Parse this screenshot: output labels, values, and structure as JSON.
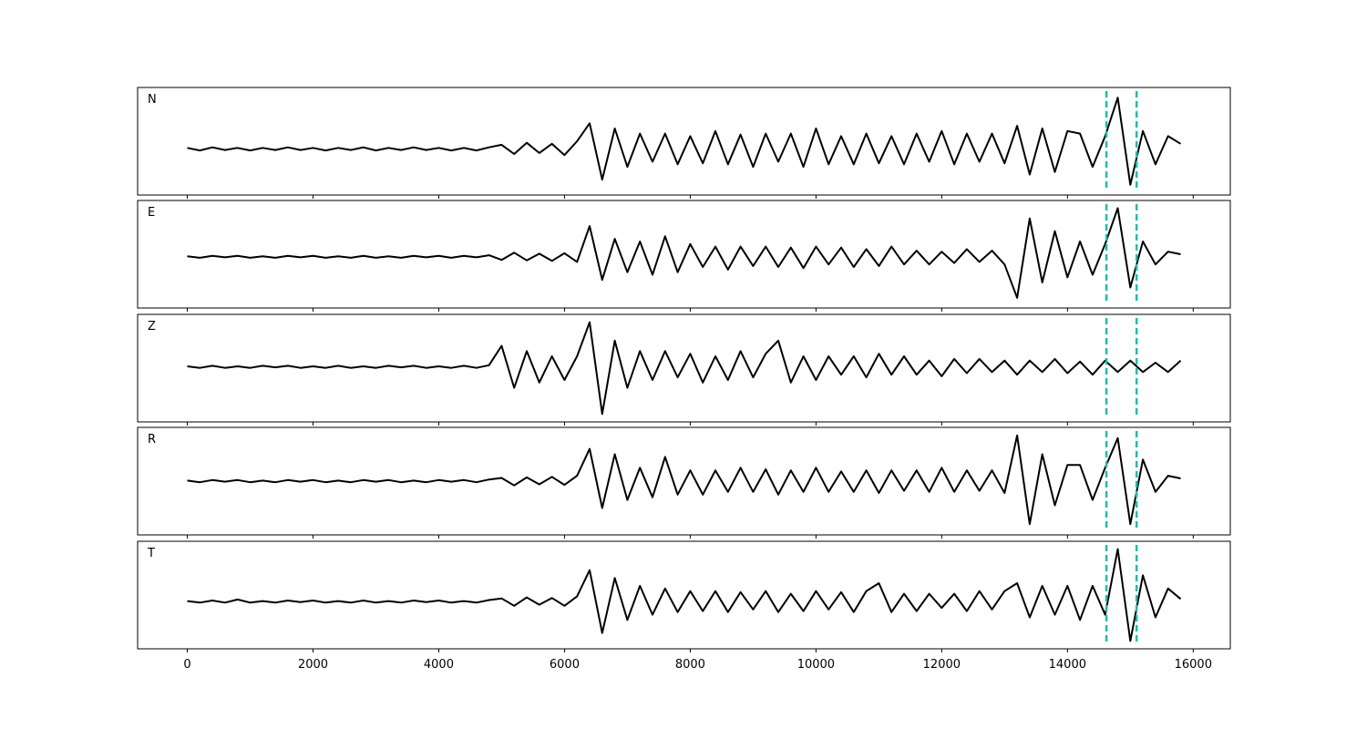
{
  "chart_data": {
    "type": "line",
    "x": [
      0,
      200,
      400,
      600,
      800,
      1000,
      1200,
      1400,
      1600,
      1800,
      2000,
      2200,
      2400,
      2600,
      2800,
      3000,
      3200,
      3400,
      3600,
      3800,
      4000,
      4200,
      4400,
      4600,
      4800,
      5000,
      5200,
      5400,
      5600,
      5800,
      6000,
      6200,
      6400,
      6600,
      6800,
      7000,
      7200,
      7400,
      7600,
      7800,
      8000,
      8200,
      8400,
      8600,
      8800,
      9000,
      9200,
      9400,
      9600,
      9800,
      10000,
      10200,
      10400,
      10600,
      10800,
      11000,
      11200,
      11400,
      11600,
      11800,
      12000,
      12200,
      12400,
      12600,
      12800,
      13000,
      13200,
      13400,
      13600,
      13800,
      14000,
      14200,
      14400,
      14600,
      14800,
      15000,
      15200,
      15400,
      15600,
      15800
    ],
    "xlim": [
      -790,
      16590
    ],
    "xticks": [
      0,
      2000,
      4000,
      6000,
      8000,
      10000,
      12000,
      14000,
      16000
    ],
    "vlines": [
      14620,
      15100
    ],
    "vline_color": "#17bfb0",
    "series": [
      {
        "name": "N",
        "color": "#000000",
        "ylim": [
          -0.9,
          1.2
        ],
        "values": [
          0.02,
          -0.03,
          0.03,
          -0.02,
          0.02,
          -0.03,
          0.02,
          -0.02,
          0.03,
          -0.02,
          0.02,
          -0.03,
          0.02,
          -0.02,
          0.03,
          -0.03,
          0.02,
          -0.02,
          0.03,
          -0.02,
          0.02,
          -0.03,
          0.02,
          -0.03,
          0.03,
          0.08,
          -0.1,
          0.12,
          -0.08,
          0.1,
          -0.12,
          0.15,
          0.5,
          -0.6,
          0.4,
          -0.35,
          0.3,
          -0.25,
          0.3,
          -0.3,
          0.25,
          -0.28,
          0.35,
          -0.3,
          0.28,
          -0.35,
          0.3,
          -0.25,
          0.3,
          -0.35,
          0.4,
          -0.3,
          0.25,
          -0.3,
          0.3,
          -0.28,
          0.25,
          -0.3,
          0.3,
          -0.25,
          0.35,
          -0.3,
          0.3,
          -0.25,
          0.3,
          -0.28,
          0.45,
          -0.5,
          0.4,
          -0.45,
          0.35,
          0.3,
          -0.35,
          0.25,
          1.0,
          -0.7,
          0.35,
          -0.3,
          0.25,
          0.1
        ]
      },
      {
        "name": "E",
        "color": "#000000",
        "ylim": [
          -1.0,
          1.1
        ],
        "values": [
          0.01,
          -0.02,
          0.02,
          -0.01,
          0.02,
          -0.02,
          0.01,
          -0.02,
          0.02,
          -0.01,
          0.02,
          -0.02,
          0.01,
          -0.02,
          0.02,
          -0.02,
          0.01,
          -0.02,
          0.02,
          -0.01,
          0.02,
          -0.02,
          0.02,
          -0.01,
          0.03,
          -0.06,
          0.08,
          -0.07,
          0.06,
          -0.08,
          0.07,
          -0.1,
          0.6,
          -0.45,
          0.35,
          -0.3,
          0.3,
          -0.35,
          0.4,
          -0.3,
          0.25,
          -0.2,
          0.2,
          -0.25,
          0.2,
          -0.18,
          0.2,
          -0.2,
          0.18,
          -0.22,
          0.2,
          -0.15,
          0.18,
          -0.2,
          0.15,
          -0.18,
          0.2,
          -0.15,
          0.12,
          -0.15,
          0.1,
          -0.12,
          0.15,
          -0.1,
          0.12,
          -0.15,
          -0.8,
          0.75,
          -0.5,
          0.5,
          -0.4,
          0.3,
          -0.35,
          0.25,
          0.95,
          -0.6,
          0.3,
          -0.15,
          0.1,
          0.05
        ]
      },
      {
        "name": "Z",
        "color": "#000000",
        "ylim": [
          -1.05,
          1.0
        ],
        "values": [
          0.01,
          -0.02,
          0.02,
          -0.02,
          0.01,
          -0.02,
          0.02,
          -0.01,
          0.02,
          -0.02,
          0.01,
          -0.02,
          0.02,
          -0.02,
          0.01,
          -0.02,
          0.02,
          -0.01,
          0.02,
          -0.02,
          0.01,
          -0.02,
          0.02,
          -0.02,
          0.03,
          0.4,
          -0.4,
          0.3,
          -0.3,
          0.2,
          -0.25,
          0.2,
          0.85,
          -0.9,
          0.5,
          -0.4,
          0.3,
          -0.25,
          0.3,
          -0.2,
          0.25,
          -0.3,
          0.2,
          -0.25,
          0.3,
          -0.2,
          0.25,
          0.5,
          -0.3,
          0.2,
          -0.25,
          0.2,
          -0.15,
          0.2,
          -0.2,
          0.25,
          -0.15,
          0.2,
          -0.15,
          0.12,
          -0.18,
          0.15,
          -0.12,
          0.15,
          -0.1,
          0.12,
          -0.15,
          0.12,
          -0.1,
          0.15,
          -0.12,
          0.1,
          -0.15,
          0.12,
          -0.1,
          0.12,
          -0.1,
          0.08,
          -0.1,
          0.12
        ]
      },
      {
        "name": "R",
        "color": "#000000",
        "ylim": [
          -1.0,
          1.0
        ],
        "values": [
          0.01,
          -0.02,
          0.02,
          -0.01,
          0.02,
          -0.02,
          0.01,
          -0.02,
          0.02,
          -0.01,
          0.02,
          -0.02,
          0.01,
          -0.02,
          0.02,
          -0.01,
          0.02,
          -0.02,
          0.01,
          -0.02,
          0.02,
          -0.01,
          0.02,
          -0.02,
          0.03,
          0.06,
          -0.08,
          0.07,
          -0.06,
          0.08,
          -0.07,
          0.1,
          0.6,
          -0.5,
          0.5,
          -0.35,
          0.25,
          -0.3,
          0.45,
          -0.25,
          0.2,
          -0.25,
          0.2,
          -0.2,
          0.25,
          -0.2,
          0.22,
          -0.25,
          0.2,
          -0.2,
          0.25,
          -0.2,
          0.18,
          -0.2,
          0.2,
          -0.22,
          0.2,
          -0.18,
          0.2,
          -0.2,
          0.25,
          -0.2,
          0.2,
          -0.18,
          0.2,
          -0.22,
          0.85,
          -0.8,
          0.5,
          -0.45,
          0.3,
          0.3,
          -0.35,
          0.25,
          0.8,
          -0.8,
          0.4,
          -0.2,
          0.1,
          0.05
        ]
      },
      {
        "name": "T",
        "color": "#000000",
        "ylim": [
          -0.9,
          1.15
        ],
        "values": [
          0.01,
          -0.02,
          0.02,
          -0.02,
          0.04,
          -0.02,
          0.01,
          -0.02,
          0.02,
          -0.01,
          0.02,
          -0.02,
          0.01,
          -0.02,
          0.02,
          -0.02,
          0.01,
          -0.02,
          0.02,
          -0.01,
          0.02,
          -0.02,
          0.01,
          -0.02,
          0.03,
          0.06,
          -0.08,
          0.08,
          -0.06,
          0.07,
          -0.08,
          0.1,
          0.6,
          -0.6,
          0.45,
          -0.35,
          0.3,
          -0.25,
          0.25,
          -0.2,
          0.2,
          -0.18,
          0.2,
          -0.2,
          0.18,
          -0.15,
          0.2,
          -0.2,
          0.15,
          -0.18,
          0.2,
          -0.15,
          0.18,
          -0.2,
          0.2,
          0.35,
          -0.2,
          0.15,
          -0.18,
          0.15,
          -0.12,
          0.15,
          -0.18,
          0.2,
          -0.15,
          0.2,
          0.35,
          -0.3,
          0.3,
          -0.25,
          0.3,
          -0.35,
          0.3,
          -0.25,
          1.0,
          -0.75,
          0.5,
          -0.3,
          0.25,
          0.05
        ]
      }
    ]
  }
}
